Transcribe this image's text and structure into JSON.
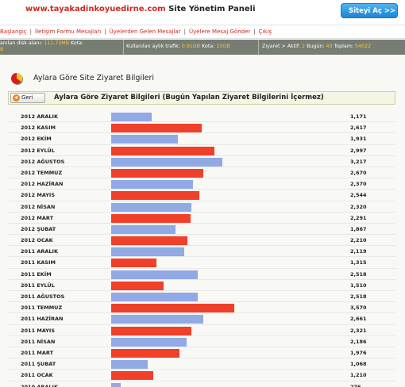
{
  "header": {
    "domain": "www.tayakadinkoyuedirne.com",
    "title_rest": "Site Yönetim Paneli",
    "site_button": "Siteyi Aç >>"
  },
  "nav": {
    "items": [
      "Başlangıç",
      "İletişim Formu Mesajları",
      "Üyelerden Gelen Mesajlar",
      "Üyelere Mesaj Gönder",
      "Çıkış"
    ]
  },
  "status": {
    "disk_label": "anılan disk alanı:",
    "disk_used": "111.73MB",
    "quota_label": "Kota:",
    "quota_fragment": "B",
    "traffic_label": "Kullanılan aylık trafik:",
    "traffic_value": "0.91GB",
    "traffic_quota_label": "Kota:",
    "traffic_quota": "15GB",
    "visits_prefix": "Ziyaret > Aktif:",
    "active": "2",
    "today_label": "Bugün:",
    "today": "43",
    "total_label": "Toplam:",
    "total": "54022"
  },
  "page": {
    "title": "Aylara Göre Site Ziyaret Bilgileri",
    "back_label": "Geri",
    "subtitle": "Aylara Göre Ziyaret Bilgileri (Bugün Yapılan Ziyaret Bilgilerini İçermez)"
  },
  "colors": {
    "bar_blue": "#91a9e5",
    "bar_red": "#f0402a"
  },
  "chart_data": {
    "type": "bar",
    "orientation": "horizontal",
    "categories": [
      "2012 ARALIK",
      "2012 KASIM",
      "2012 EKİM",
      "2012 EYLÜL",
      "2012 AĞUSTOS",
      "2012 TEMMUZ",
      "2012 HAZİRAN",
      "2012 MAYIS",
      "2012 NİSAN",
      "2012 MART",
      "2012 ŞUBAT",
      "2012 OCAK",
      "2011 ARALIK",
      "2011 KASIM",
      "2011 EKİM",
      "2011 EYLÜL",
      "2011 AĞUSTOS",
      "2011 TEMMUZ",
      "2011 HAZİRAN",
      "2011 MAYIS",
      "2011 NİSAN",
      "2011 MART",
      "2011 ŞUBAT",
      "2011 OCAK",
      "2010 ARALIK"
    ],
    "values": [
      1171,
      2617,
      1931,
      2997,
      3217,
      2670,
      2370,
      2544,
      2320,
      2291,
      1867,
      2210,
      2119,
      1315,
      2518,
      1510,
      2518,
      3570,
      2661,
      2321,
      2186,
      1976,
      1068,
      1210,
      276
    ],
    "value_labels": [
      "1,171",
      "2,617",
      "1,931",
      "2,997",
      "3,217",
      "2,670",
      "2,370",
      "2,544",
      "2,320",
      "2,291",
      "1,867",
      "2,210",
      "2,119",
      "1,315",
      "2,518",
      "1,510",
      "2,518",
      "3,570",
      "2,661",
      "2,321",
      "2,186",
      "1,976",
      "1,068",
      "1,210",
      "276"
    ],
    "colors": [
      "blue",
      "red",
      "blue",
      "red",
      "blue",
      "red",
      "blue",
      "red",
      "blue",
      "red",
      "blue",
      "red",
      "blue",
      "red",
      "blue",
      "red",
      "blue",
      "red",
      "blue",
      "red",
      "blue",
      "red",
      "blue",
      "red",
      "blue"
    ],
    "title": "Aylara Göre Ziyaret Bilgileri (Bugün Yapılan Ziyaret Bilgilerini İçermez)",
    "xlim": [
      0,
      3570
    ],
    "grid": false,
    "legend": "none"
  }
}
